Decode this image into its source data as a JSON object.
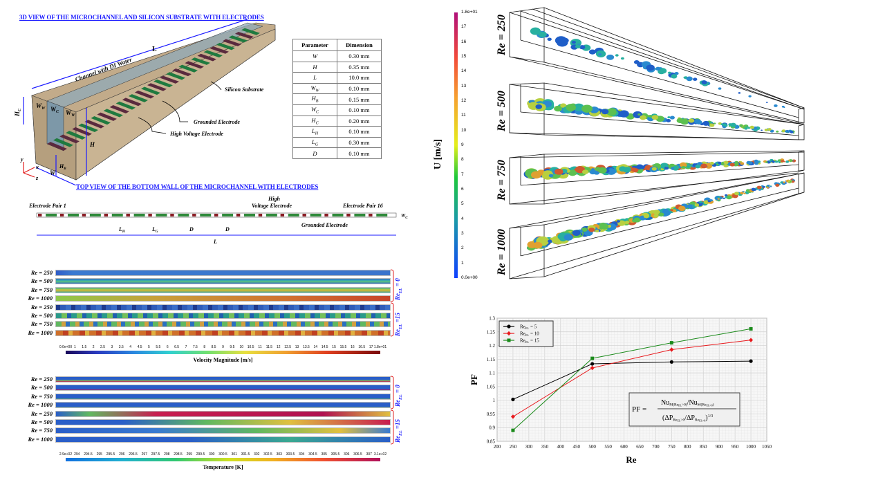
{
  "figure": {
    "view3d": {
      "title": "3D VIEW OF THE MICROCHANNEL AND SILICON SUBSTRATE WITH ELECTRODES",
      "labels": {
        "length": "L",
        "channel": "Channel with DI Water",
        "substrate": "Silicon Substrate",
        "grounded": "Grounded Electrode",
        "high_voltage": "High Voltage Electrode",
        "hc": "H",
        "hc_sub": "C",
        "ww_left": "W",
        "ww_sub": "W",
        "wc": "W",
        "wc_sub": "C",
        "ww_right": "W",
        "h": "H",
        "hb": "H",
        "hb_sub": "B",
        "w": "W",
        "axis_x": "x",
        "axis_y": "y",
        "axis_z": "z"
      },
      "colors": {
        "substrate": "#c2ab8a",
        "channel": "#8fa9b8",
        "grounded": "#1f7a3f",
        "high_voltage": "#5a2a3e",
        "dimension": "#1a1aff",
        "axis": "#e21d1d"
      }
    },
    "param_table": {
      "headers": [
        "Parameter",
        "Dimension"
      ],
      "rows": [
        {
          "param": "W",
          "sub": "",
          "value": "0.30 mm"
        },
        {
          "param": "H",
          "sub": "",
          "value": "0.35 mm"
        },
        {
          "param": "L",
          "sub": "",
          "value": "10.0 mm"
        },
        {
          "param": "W",
          "sub": "W",
          "value": "0.10 mm"
        },
        {
          "param": "H",
          "sub": "B",
          "value": "0.15 mm"
        },
        {
          "param": "W",
          "sub": "C",
          "value": "0.10 mm"
        },
        {
          "param": "H",
          "sub": "C",
          "value": "0.20 mm"
        },
        {
          "param": "L",
          "sub": "H",
          "value": "0.10 mm"
        },
        {
          "param": "L",
          "sub": "G",
          "value": "0.30 mm"
        },
        {
          "param": "D",
          "sub": "",
          "value": "0.10 mm"
        }
      ]
    },
    "top_view": {
      "title": "TOP VIEW OF THE BOTTOM WALL OF THE MICROCHANNEL WITH ELECTRODES",
      "pair_first": "Electrode  Pair 1",
      "pair_last": "Electrode  Pair 16",
      "hv_line1": "High",
      "hv_line2": "Voltage Electrode",
      "grounded": "Grounded Electrode",
      "lh": "L",
      "lh_sub": "H",
      "lg": "L",
      "lg_sub": "G",
      "d1": "D",
      "d2": "D",
      "length": "L",
      "wc": "W",
      "wc_sub": "C",
      "pairs": 16
    },
    "velocity_contours": {
      "rows": [
        "Re = 250",
        "Re = 500",
        "Re = 750",
        "Re = 1000",
        "Re = 250",
        "Re = 500",
        "Re = 750",
        "Re = 1000"
      ],
      "group_top": "Re",
      "group_top_sub": "EL",
      "group_top_val": " = 0",
      "group_bottom": "Re",
      "group_bottom_sub": "EL",
      "group_bottom_val": " =15",
      "colorbar_ticks": [
        "0.0e+00",
        "1",
        "1.5",
        "2",
        "2.5",
        "3",
        "3.5",
        "4",
        "4.5",
        "5",
        "5.5",
        "6",
        "6.5",
        "7",
        "7.5",
        "8",
        "8.5",
        "9",
        "9.5",
        "10",
        "10.5",
        "11",
        "11.5",
        "12",
        "12.5",
        "13",
        "13.5",
        "14",
        "14.5",
        "15",
        "15.5",
        "16",
        "16.5",
        "17",
        "1.8e+01"
      ],
      "colorbar_label": "Velocity Magnitude [m/s]"
    },
    "temperature_contours": {
      "rows": [
        "Re = 250",
        "Re = 500",
        "Re = 750",
        "Re = 1000",
        "Re = 250",
        "Re = 500",
        "Re = 750",
        "Re = 1000"
      ],
      "group_top": "Re",
      "group_top_sub": "EL",
      "group_top_val": " = 0",
      "group_bottom": "Re",
      "group_bottom_sub": "EL",
      "group_bottom_val": " =15",
      "colorbar_ticks": [
        "2.9e+02",
        "294",
        "294.5",
        "295",
        "295.5",
        "296",
        "296.5",
        "297",
        "297.5",
        "298",
        "298.5",
        "299",
        "299.5",
        "300",
        "300.5",
        "301",
        "301.5",
        "302",
        "302.5",
        "303",
        "303.5",
        "304",
        "304.5",
        "305",
        "305.5",
        "306",
        "306.5",
        "307",
        "3.1e+02"
      ],
      "colorbar_label": "Temperature [K]"
    },
    "vortex_3d": {
      "colorbar_label": "U [m/s]",
      "colorbar_ticks": [
        "1.8e+01",
        "17",
        "16",
        "15",
        "14",
        "13",
        "12",
        "11",
        "10",
        "9",
        "8",
        "7",
        "6",
        "5",
        "4",
        "3",
        "2",
        "1",
        "0.0e+00"
      ],
      "cases": [
        "Re = 250",
        "Re = 500",
        "Re = 750",
        "Re = 1000"
      ]
    }
  },
  "chart_data": {
    "type": "line",
    "title": "",
    "xlabel": "Re",
    "ylabel": "PF",
    "xlim": [
      200,
      1050
    ],
    "ylim": [
      0.85,
      1.3
    ],
    "xticks": [
      "200",
      "250",
      "300",
      "350",
      "400",
      "450",
      "500",
      "550",
      "600",
      "650",
      "700",
      "750",
      "800",
      "850",
      "900",
      "950",
      "1000",
      "1050"
    ],
    "yticks": [
      "0.85",
      "0.9",
      "0.95",
      "1",
      "1.05",
      "1.1",
      "1.15",
      "1.2",
      "1.25",
      "1.3"
    ],
    "grid": true,
    "legend_position": "top-left",
    "x": [
      250,
      500,
      750,
      1000
    ],
    "series": [
      {
        "name": "Re_EL = 5",
        "label_main": "Re",
        "label_sub": "EL",
        "label_val": " = 5",
        "color": "#000000",
        "marker": "circle",
        "values": [
          1.003,
          1.133,
          1.14,
          1.143
        ]
      },
      {
        "name": "Re_EL = 10",
        "label_main": "Re",
        "label_sub": "EL",
        "label_val": " = 10",
        "color": "#e8191c",
        "marker": "diamond",
        "values": [
          0.94,
          1.118,
          1.185,
          1.22
        ]
      },
      {
        "name": "Re_EL = 15",
        "label_main": "Re",
        "label_sub": "EL",
        "label_val": " = 15",
        "color": "#1a8a1a",
        "marker": "square",
        "values": [
          0.89,
          1.153,
          1.21,
          1.261
        ]
      }
    ],
    "annotation": {
      "lhs": "PF =",
      "num_a": "Nu",
      "num_a_sub": "M(Re",
      "num_a_sub2": "EL",
      "num_a_sub3": ">0)",
      "slash": "/",
      "num_b": "Nu",
      "num_b_sub": "M(Re",
      "num_b_sub2": "EL=0",
      "num_b_sub3": ")",
      "den_open": "(ΔP",
      "den_a_sub": "Re",
      "den_a_sub2": "EL",
      "den_a_sub3": ">0",
      "den_slash": "/ΔP",
      "den_b_sub": "Re",
      "den_b_sub2": "EL=0",
      "den_close": ")",
      "den_exp": "1/3"
    }
  }
}
